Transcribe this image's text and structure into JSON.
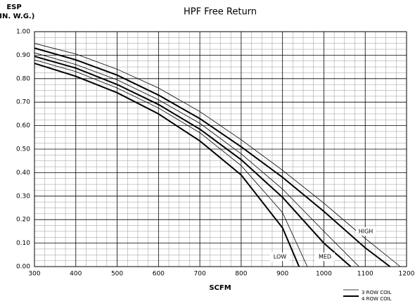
{
  "chart_data": {
    "type": "line",
    "title": "HPF Free Return",
    "y_label": [
      "ESP",
      "(IN. W.G.)"
    ],
    "x_label": "SCFM",
    "xlim": [
      300,
      1200
    ],
    "ylim": [
      0,
      1
    ],
    "xticks": [
      300,
      400,
      500,
      600,
      700,
      800,
      900,
      1000,
      1100,
      1200
    ],
    "yticks": [
      {
        "value": 0,
        "label": "0.00"
      },
      {
        "value": 0.1,
        "label": "0.10"
      },
      {
        "value": 0.2,
        "label": "0.20"
      },
      {
        "value": 0.3,
        "label": "0.30"
      },
      {
        "value": 0.4,
        "label": "0.40"
      },
      {
        "value": 0.5,
        "label": "0.50"
      },
      {
        "value": 0.6,
        "label": "0.60"
      },
      {
        "value": 0.7,
        "label": "0.70"
      },
      {
        "value": 0.8,
        "label": "0.80"
      },
      {
        "value": 0.9,
        "label": "0.90"
      },
      {
        "value": 1,
        "label": "1.00"
      }
    ],
    "grid": true,
    "minor_divisions": 4,
    "legend": [
      {
        "label": "3 ROW COIL",
        "color": "#000000",
        "line_width": 0.8
      },
      {
        "label": "4 ROW COIL",
        "color": "#000000",
        "line_width": 2
      }
    ],
    "annotations": [
      {
        "text": "LOW"
      },
      {
        "text": "MED"
      },
      {
        "text": "HIGH"
      }
    ],
    "series": [
      {
        "style": 0,
        "x": [
          300,
          400,
          500,
          600,
          700,
          800,
          900,
          1000,
          1100,
          1185
        ],
        "values": [
          0.95,
          0.905,
          0.84,
          0.76,
          0.66,
          0.54,
          0.41,
          0.27,
          0.12,
          0
        ]
      },
      {
        "style": 1,
        "x": [
          300,
          400,
          500,
          600,
          700,
          800,
          900,
          1000,
          1100,
          1160
        ],
        "values": [
          0.93,
          0.88,
          0.815,
          0.73,
          0.63,
          0.51,
          0.38,
          0.235,
          0.08,
          0
        ]
      },
      {
        "style": 0,
        "x": [
          300,
          400,
          500,
          600,
          700,
          800,
          900,
          1000,
          1085
        ],
        "values": [
          0.91,
          0.86,
          0.795,
          0.71,
          0.61,
          0.48,
          0.33,
          0.15,
          0
        ]
      },
      {
        "style": 1,
        "x": [
          300,
          400,
          500,
          600,
          700,
          800,
          900,
          1000,
          1065
        ],
        "values": [
          0.895,
          0.845,
          0.775,
          0.69,
          0.585,
          0.455,
          0.295,
          0.1,
          0
        ]
      },
      {
        "style": 0,
        "x": [
          300,
          400,
          500,
          600,
          700,
          800,
          900,
          960
        ],
        "values": [
          0.88,
          0.83,
          0.76,
          0.675,
          0.57,
          0.43,
          0.23,
          0
        ]
      },
      {
        "style": 1,
        "x": [
          300,
          400,
          500,
          600,
          700,
          800,
          900,
          940
        ],
        "values": [
          0.865,
          0.81,
          0.74,
          0.65,
          0.535,
          0.39,
          0.165,
          0
        ]
      }
    ]
  }
}
